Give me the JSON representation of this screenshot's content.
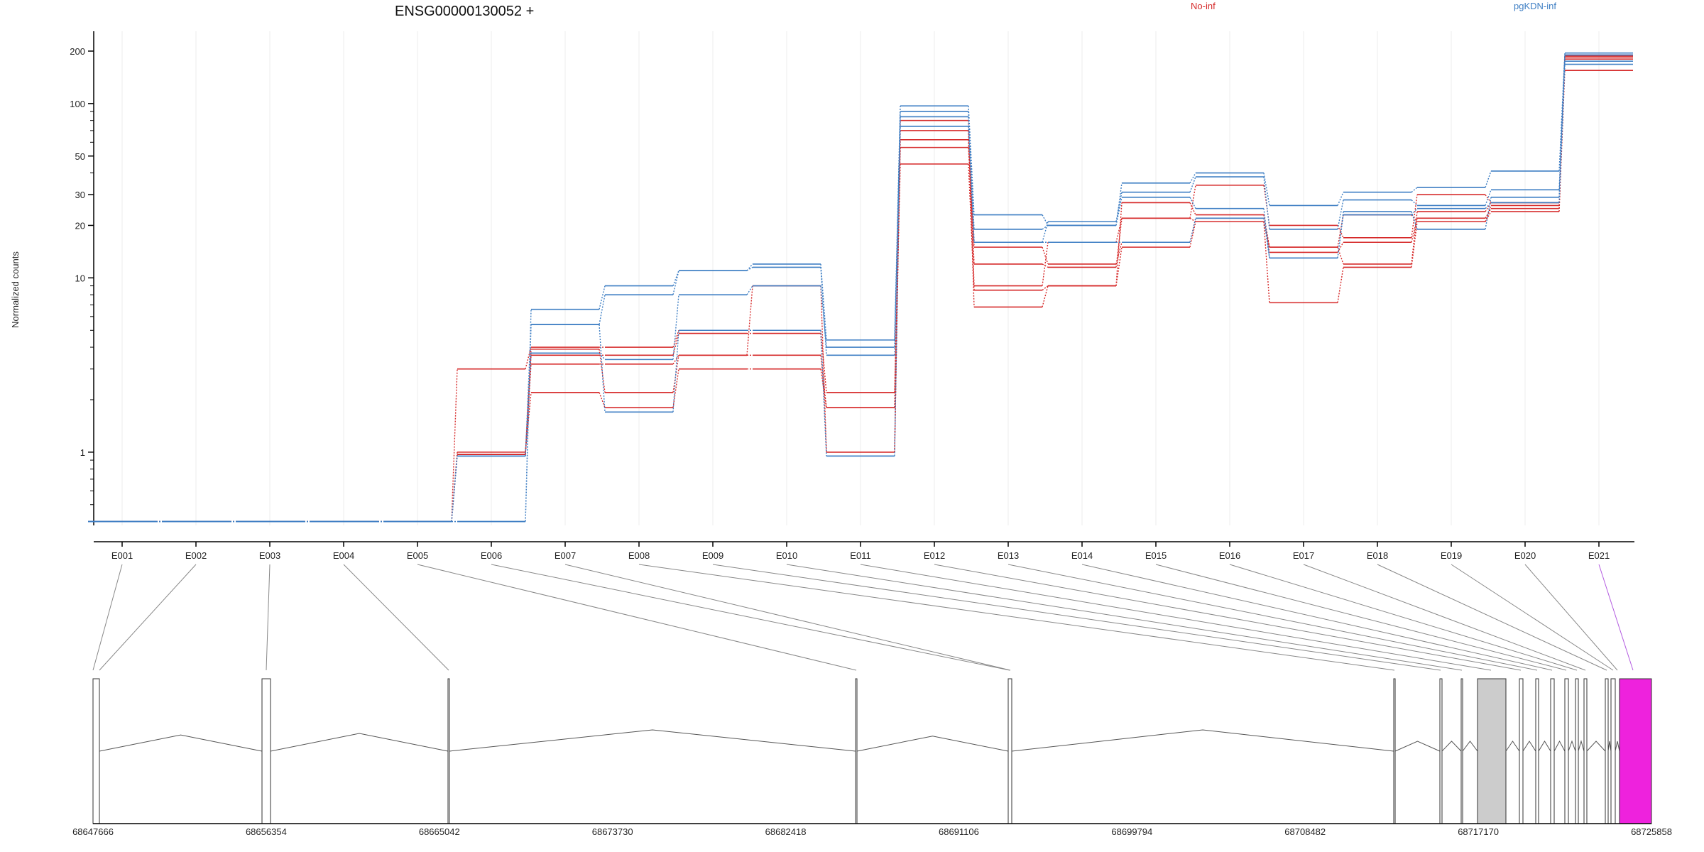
{
  "colors": {
    "no_inf": "#d62a2a",
    "pgkdn_inf": "#3f7fc4",
    "highlight_exon": "#ee22dd",
    "gray_exon": "#cccccc",
    "link_line": "#888888",
    "highlight_link": "#b35ae0"
  },
  "chart_data": {
    "type": "line",
    "title": "ENSG00000130052 +",
    "xlabel": "",
    "ylabel": "Normalized counts",
    "y_scale": "log",
    "ylim": [
      0.38,
      260
    ],
    "y_ticks": [
      1,
      10,
      20,
      30,
      50,
      100,
      200
    ],
    "y_tick_labels": [
      "1",
      "10",
      "20",
      "30",
      "50",
      "100",
      "200"
    ],
    "categories": [
      "E001",
      "E002",
      "E003",
      "E004",
      "E005",
      "E006",
      "E007",
      "E008",
      "E009",
      "E010",
      "E011",
      "E012",
      "E013",
      "E014",
      "E015",
      "E016",
      "E017",
      "E018",
      "E019",
      "E020",
      "E021"
    ],
    "legend": [
      {
        "name": "No-inf",
        "color": "#d62a2a"
      },
      {
        "name": "pgKDN-inf",
        "color": "#3f7fc4"
      }
    ],
    "grid": "vertical-light",
    "series": [
      {
        "group": "No-inf",
        "values": [
          0.4,
          0.4,
          0.4,
          0.4,
          0.4,
          3.0,
          4.0,
          4.0,
          5.0,
          5.0,
          2.2,
          45,
          8.5,
          9.0,
          15,
          21,
          7.2,
          11.5,
          21,
          24,
          155
        ]
      },
      {
        "group": "No-inf",
        "values": [
          0.4,
          0.4,
          0.4,
          0.4,
          0.4,
          1.0,
          2.2,
          1.8,
          3.0,
          3.0,
          1.8,
          56,
          15,
          12,
          16,
          22,
          14,
          16,
          22,
          25,
          180
        ]
      },
      {
        "group": "No-inf",
        "values": [
          0.4,
          0.4,
          0.4,
          0.4,
          0.4,
          0.97,
          3.6,
          3.6,
          4.8,
          4.8,
          1.0,
          62,
          12,
          11.5,
          22,
          34,
          20,
          17,
          30,
          27,
          185
        ]
      },
      {
        "group": "No-inf",
        "values": [
          0.4,
          0.4,
          0.4,
          0.4,
          0.4,
          0.97,
          3.2,
          3.2,
          3.6,
          3.6,
          1.8,
          70,
          6.8,
          9.0,
          27,
          23,
          15,
          12,
          24,
          27,
          190
        ]
      },
      {
        "group": "No-inf",
        "values": [
          0.4,
          0.4,
          0.4,
          0.4,
          0.4,
          0.97,
          3.9,
          2.2,
          3.6,
          9.0,
          1.0,
          80,
          9.0,
          16,
          22,
          21,
          15,
          23,
          21,
          26,
          188
        ]
      },
      {
        "group": "pgKDN-inf",
        "values": [
          0.4,
          0.4,
          0.4,
          0.4,
          0.4,
          0.4,
          6.6,
          9.0,
          11.0,
          12.0,
          4.4,
          97,
          23,
          20,
          35,
          40,
          26,
          31,
          33,
          41,
          195
        ]
      },
      {
        "group": "pgKDN-inf",
        "values": [
          0.4,
          0.4,
          0.4,
          0.4,
          0.4,
          0.4,
          5.4,
          8.0,
          11.0,
          11.5,
          3.6,
          90,
          16,
          21,
          31,
          38,
          19,
          28,
          26,
          32,
          190
        ]
      },
      {
        "group": "pgKDN-inf",
        "values": [
          0.4,
          0.4,
          0.4,
          0.4,
          0.4,
          0.95,
          5.4,
          1.7,
          5.0,
          5.0,
          0.95,
          84,
          19,
          20,
          29,
          25,
          13,
          24,
          19,
          29,
          175
        ]
      },
      {
        "group": "pgKDN-inf",
        "values": [
          0.4,
          0.4,
          0.4,
          0.4,
          0.4,
          0.95,
          3.7,
          3.4,
          8.0,
          9.0,
          4.0,
          74,
          16,
          16,
          16,
          22,
          13,
          23,
          25,
          27,
          168
        ]
      }
    ]
  },
  "gene_model": {
    "coordinate_labels": [
      "68647666",
      "68656354",
      "68665042",
      "68673730",
      "68682418",
      "68691106",
      "68699794",
      "68708482",
      "68717170",
      "68725858"
    ],
    "highlight_exon": "E021"
  }
}
